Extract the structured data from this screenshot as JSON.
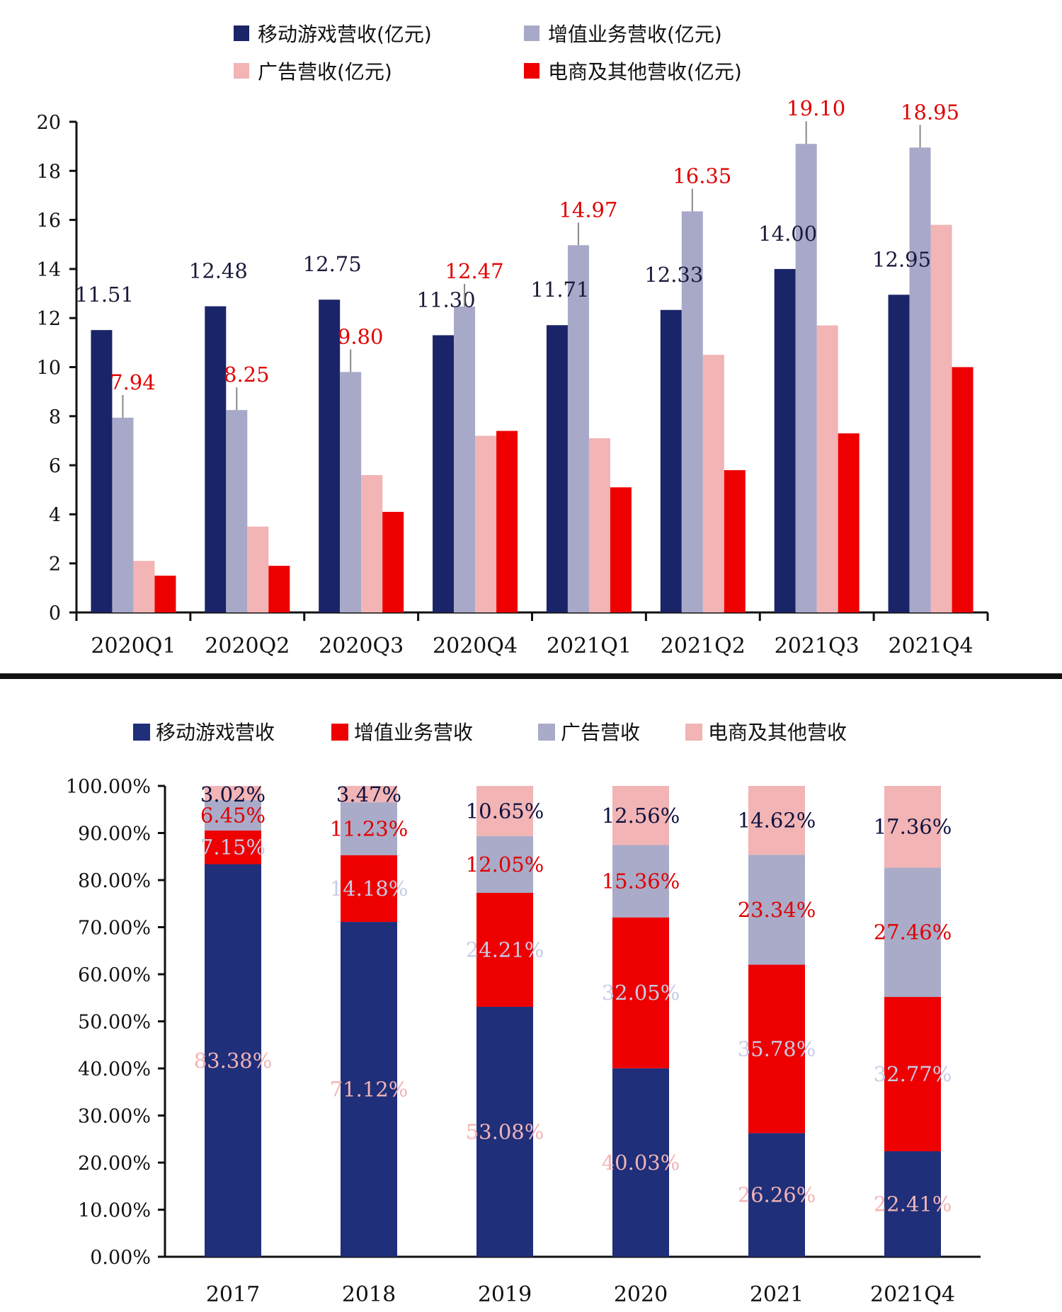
{
  "chart_data": [
    {
      "type": "bar",
      "categories": [
        "2020Q1",
        "2020Q2",
        "2020Q3",
        "2020Q4",
        "2021Q1",
        "2021Q2",
        "2021Q3",
        "2021Q4"
      ],
      "series": [
        {
          "name": "移动游戏营收(亿元)",
          "color": "#1a2468",
          "values": [
            11.51,
            12.48,
            12.75,
            11.3,
            11.71,
            12.33,
            14.0,
            12.95
          ]
        },
        {
          "name": "增值业务营收(亿元)",
          "color": "#a8a9c8",
          "values": [
            7.94,
            8.25,
            9.8,
            12.47,
            14.97,
            16.35,
            19.1,
            18.95
          ]
        },
        {
          "name": "广告营收(亿元)",
          "color": "#f2b4b4",
          "values": [
            2.1,
            3.5,
            5.6,
            7.2,
            7.1,
            10.5,
            11.7,
            15.8
          ]
        },
        {
          "name": "电商及其他营收(亿元)",
          "color": "#ee0000",
          "values": [
            1.5,
            1.9,
            4.1,
            7.4,
            5.1,
            5.8,
            7.3,
            10.0
          ]
        }
      ],
      "data_labels": {
        "移动游戏营收(亿元)": [
          "11.51",
          "12.48",
          "12.75",
          "11.30",
          "11.71",
          "12.33",
          "14.00",
          "12.95"
        ],
        "增值业务营收(亿元)": [
          "7.94",
          "8.25",
          "9.80",
          "12.47",
          "14.97",
          "16.35",
          "19.10",
          "18.95"
        ]
      },
      "label_colors": {
        "game": "#1a1a3a",
        "vas": "#e00000"
      },
      "yticks": [
        "0",
        "2",
        "4",
        "6",
        "8",
        "10",
        "12",
        "14",
        "16",
        "18",
        "20"
      ],
      "ylim": [
        0,
        20
      ],
      "grid": false,
      "legend": "top"
    },
    {
      "type": "bar",
      "stacked": true,
      "categories": [
        "2017",
        "2018",
        "2019",
        "2020",
        "2021",
        "2021Q4"
      ],
      "series": [
        {
          "name": "移动游戏营收",
          "color": "#1f2f7a",
          "values": [
            83.38,
            71.12,
            53.08,
            40.03,
            26.26,
            22.41
          ]
        },
        {
          "name": "增值业务营收",
          "color": "#ee0000",
          "values": [
            7.15,
            14.18,
            24.21,
            32.05,
            35.78,
            32.77
          ]
        },
        {
          "name": "广告营收",
          "color": "#a9abc9",
          "values": [
            6.45,
            11.23,
            12.05,
            15.36,
            23.34,
            27.46
          ]
        },
        {
          "name": "电商及其他营收",
          "color": "#f2b4b4",
          "values": [
            3.02,
            3.47,
            10.65,
            12.56,
            14.62,
            17.36
          ]
        }
      ],
      "data_labels": {
        "移动游戏营收": [
          "83.38%",
          "71.12%",
          "53.08%",
          "40.03%",
          "26.26%",
          "22.41%"
        ],
        "增值业务营收": [
          "7.15%",
          "14.18%",
          "24.21%",
          "32.05%",
          "35.78%",
          "32.77%"
        ],
        "广告营收": [
          "6.45%",
          "11.23%",
          "12.05%",
          "15.36%",
          "23.34%",
          "27.46%"
        ],
        "电商及其他营收": [
          "3.02%",
          "3.47%",
          "10.65%",
          "12.56%",
          "14.62%",
          "17.36%"
        ]
      },
      "label_colors": [
        "#f2b4b4",
        "#c8cce6",
        "#e00000",
        "#0d1240"
      ],
      "yticks": [
        "0.00%",
        "10.00%",
        "20.00%",
        "30.00%",
        "40.00%",
        "50.00%",
        "60.00%",
        "70.00%",
        "80.00%",
        "90.00%",
        "100.00%"
      ],
      "ylim": [
        0,
        100
      ],
      "grid": false,
      "legend": "top"
    }
  ]
}
